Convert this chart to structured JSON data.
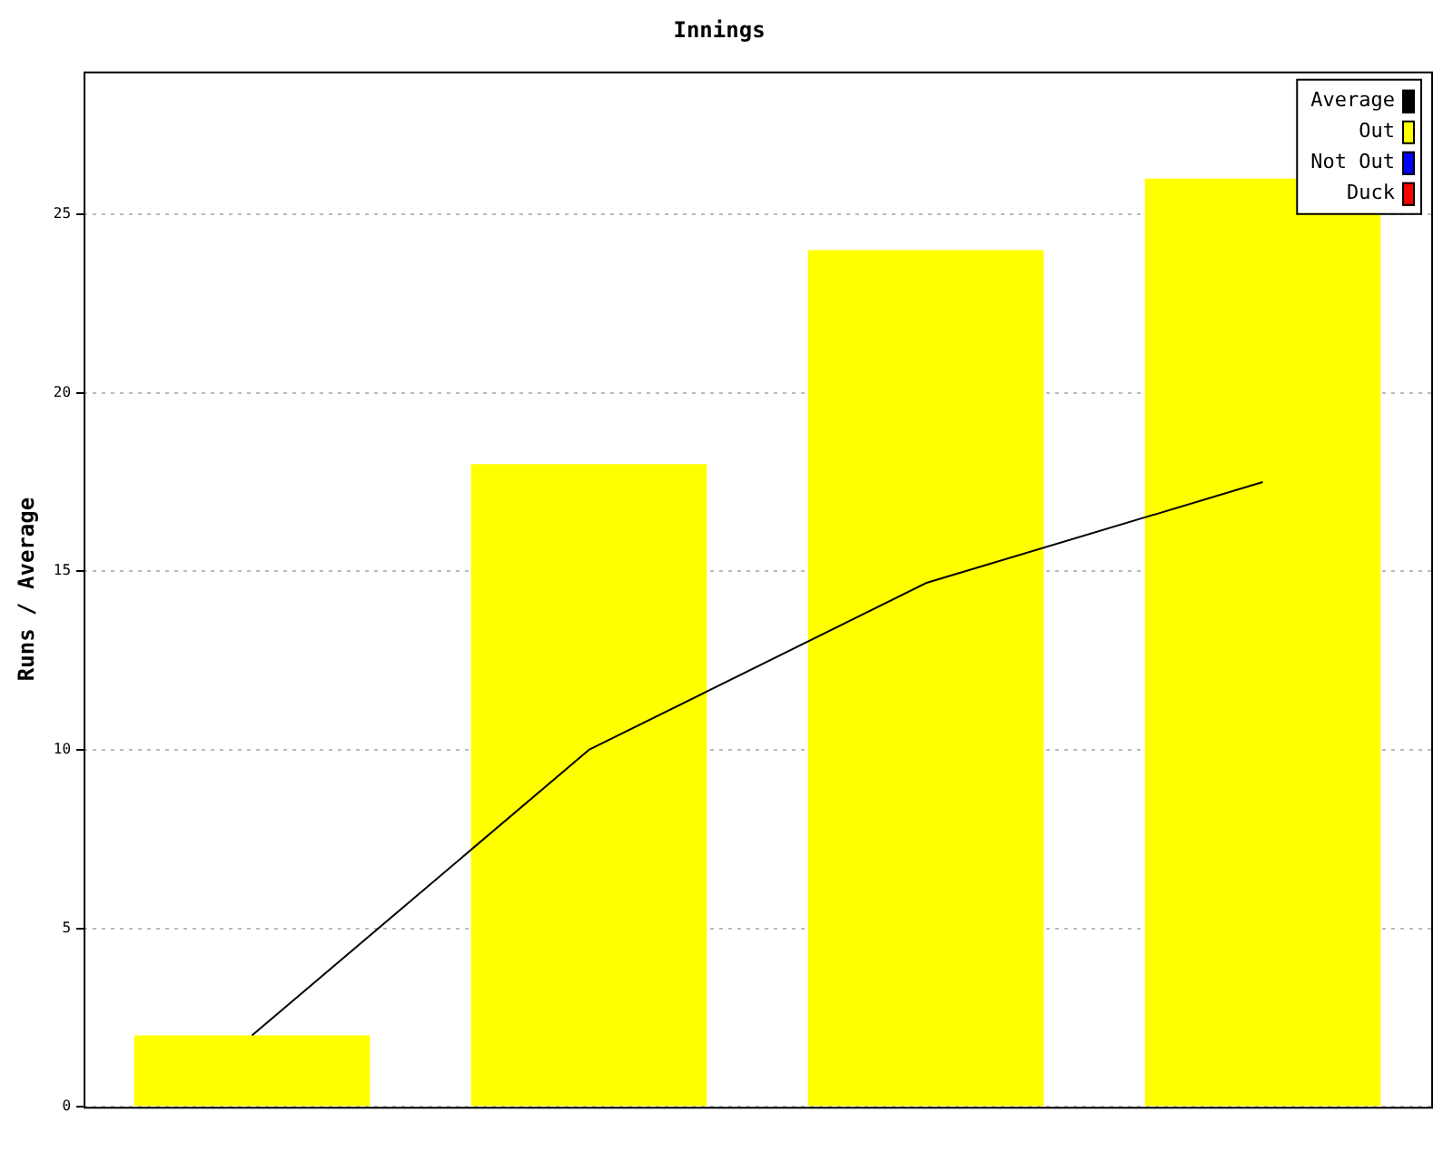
{
  "chart_data": {
    "type": "bar",
    "title": "Innings",
    "ylabel": "Runs / Average",
    "categories": [
      null,
      null,
      null,
      null
    ],
    "series": [
      {
        "name": "Average",
        "type": "line",
        "color": "#000000",
        "values": [
          2,
          10,
          14.67,
          17.5
        ]
      },
      {
        "name": "Out",
        "color": "#ffff00",
        "values": [
          2,
          18,
          24,
          26
        ]
      },
      {
        "name": "Not Out",
        "color": "#0000ff",
        "values": [
          null,
          null,
          null,
          null
        ]
      },
      {
        "name": "Duck",
        "color": "#ff0000",
        "values": [
          null,
          null,
          null,
          null
        ]
      }
    ],
    "ylim": [
      0,
      29
    ],
    "yticks": [
      0,
      5,
      10,
      15,
      20,
      25
    ],
    "grid": "y",
    "legend": "top right",
    "marker": "none",
    "line_style": "solid"
  }
}
